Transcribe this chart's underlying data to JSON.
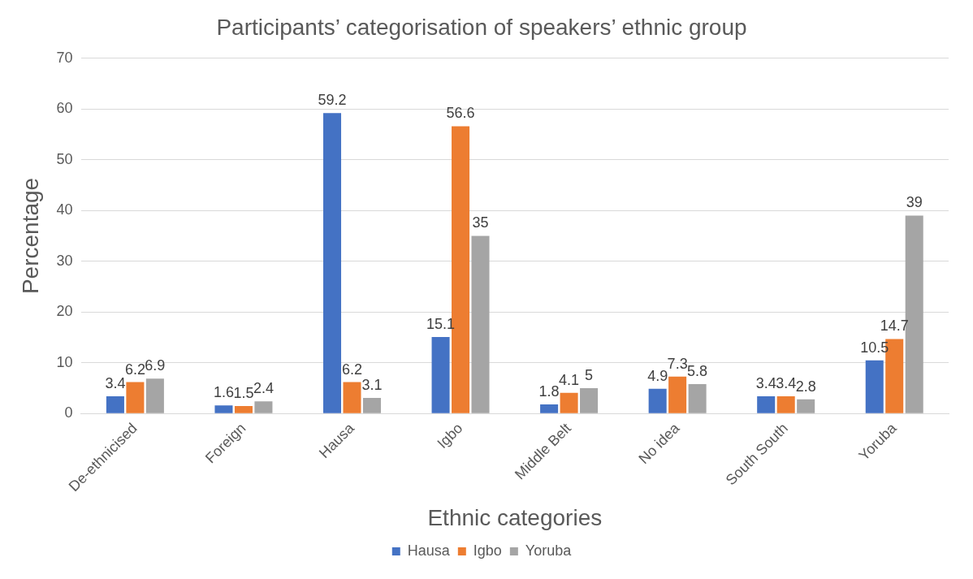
{
  "chart_data": {
    "type": "bar",
    "title": "Participants’ categorisation of speakers’ ethnic group",
    "xlabel": "Ethnic categories",
    "ylabel": "Percentage",
    "categories": [
      "De-ethnicised",
      "Foreign",
      "Hausa",
      "Igbo",
      "Middle Belt",
      "No idea",
      "South South",
      "Yoruba"
    ],
    "series": [
      {
        "name": "Hausa",
        "color": "#4472c4",
        "values": [
          3.4,
          1.6,
          59.2,
          15.1,
          1.8,
          4.9,
          3.4,
          10.5
        ]
      },
      {
        "name": "Igbo",
        "color": "#ed7d31",
        "values": [
          6.2,
          1.5,
          6.2,
          56.6,
          4.1,
          7.3,
          3.4,
          14.7
        ]
      },
      {
        "name": "Yoruba",
        "color": "#a5a5a5",
        "values": [
          6.9,
          2.4,
          3.1,
          35,
          5,
          5.8,
          2.8,
          39
        ]
      }
    ],
    "ylim": [
      0,
      70
    ],
    "yticks": [
      0,
      10,
      20,
      30,
      40,
      50,
      60,
      70
    ],
    "grid": "y",
    "legend": "bottom",
    "data_labels": true
  }
}
